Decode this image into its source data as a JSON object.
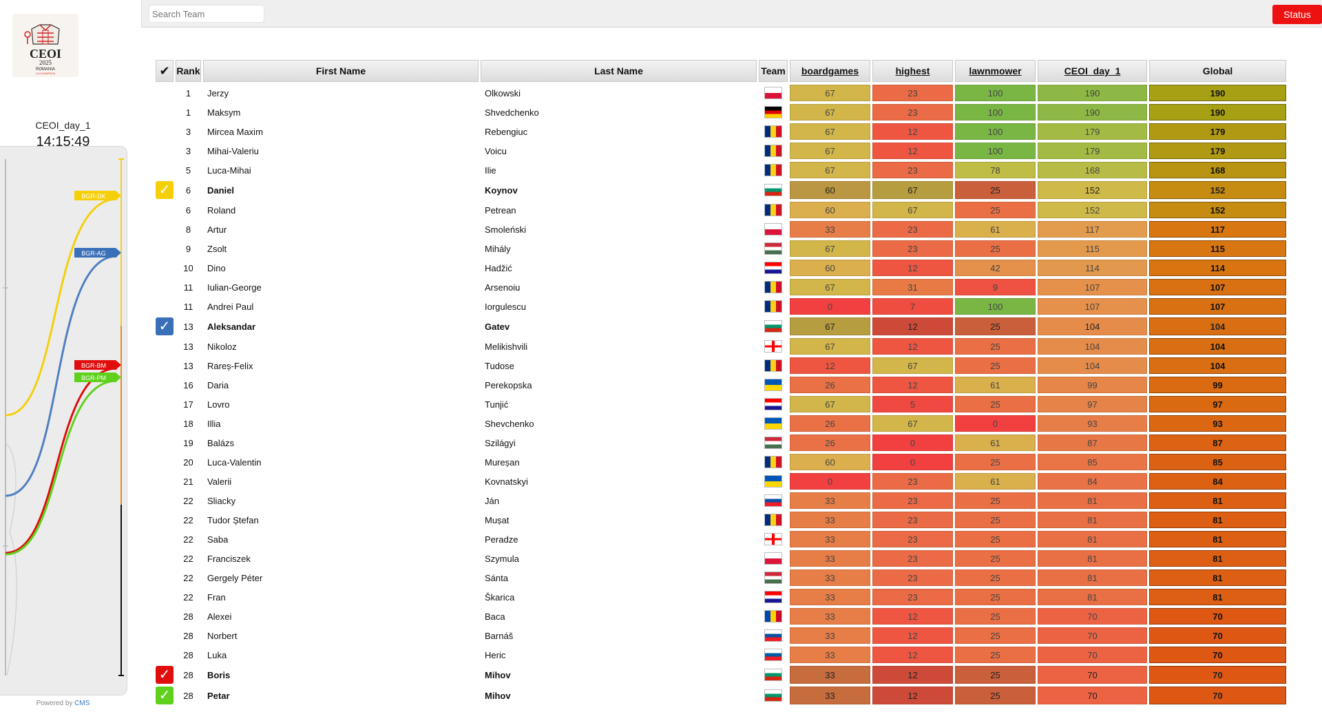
{
  "sidebar": {
    "contest_name": "CEOI_day_1",
    "clock": "14:15:49",
    "powered_by": "Powered by ",
    "cms": "CMS",
    "chart_labels": [
      {
        "name": "BGR-DK",
        "color": "#f5cf0a"
      },
      {
        "name": "BGR-AG",
        "color": "#3a70b8"
      },
      {
        "name": "BGR-BM",
        "color": "#e00d0d"
      },
      {
        "name": "BGR-PM",
        "color": "#5fd11c"
      }
    ]
  },
  "topbar": {
    "search_placeholder": "Search Team",
    "status_label": "Status"
  },
  "table": {
    "headers": {
      "select": "✔",
      "rank": "Rank",
      "first_name": "First Name",
      "last_name": "Last Name",
      "team": "Team",
      "boardgames": "boardgames",
      "highest": "highest",
      "lawnmower": "lawnmower",
      "day": "CEOI_day_1",
      "global": "Global"
    },
    "rows": [
      {
        "rank": "1",
        "first": "Jerzy",
        "last": "Olkowski",
        "flag": "pol",
        "s": [
          67,
          23,
          100
        ],
        "day": 190,
        "global": 190
      },
      {
        "rank": "1",
        "first": "Maksym",
        "last": "Shvedchenko",
        "flag": "deu",
        "s": [
          67,
          23,
          100
        ],
        "day": 190,
        "global": 190
      },
      {
        "rank": "3",
        "first": "Mircea Maxim",
        "last": "Rebengiuc",
        "flag": "rou",
        "s": [
          67,
          12,
          100
        ],
        "day": 179,
        "global": 179
      },
      {
        "rank": "3",
        "first": "Mihai-Valeriu",
        "last": "Voicu",
        "flag": "rou",
        "s": [
          67,
          12,
          100
        ],
        "day": 179,
        "global": 179
      },
      {
        "rank": "5",
        "first": "Luca-Mihai",
        "last": "Ilie",
        "flag": "rou",
        "s": [
          67,
          23,
          78
        ],
        "day": 168,
        "global": 168
      },
      {
        "rank": "6",
        "first": "Daniel",
        "last": "Koynov",
        "flag": "bgr",
        "s": [
          60,
          67,
          25
        ],
        "day": 152,
        "global": 152,
        "selected": "#f5cf0a"
      },
      {
        "rank": "6",
        "first": "Roland",
        "last": "Petrean",
        "flag": "rou",
        "s": [
          60,
          67,
          25
        ],
        "day": 152,
        "global": 152
      },
      {
        "rank": "8",
        "first": "Artur",
        "last": "Smoleński",
        "flag": "pol",
        "s": [
          33,
          23,
          61
        ],
        "day": 117,
        "global": 117
      },
      {
        "rank": "9",
        "first": "Zsolt",
        "last": "Mihály",
        "flag": "hun",
        "s": [
          67,
          23,
          25
        ],
        "day": 115,
        "global": 115
      },
      {
        "rank": "10",
        "first": "Dino",
        "last": "Hadžić",
        "flag": "hrv",
        "s": [
          60,
          12,
          42
        ],
        "day": 114,
        "global": 114
      },
      {
        "rank": "11",
        "first": "Iulian-George",
        "last": "Arsenoiu",
        "flag": "rou",
        "s": [
          67,
          31,
          9
        ],
        "day": 107,
        "global": 107
      },
      {
        "rank": "11",
        "first": "Andrei Paul",
        "last": "Iorgulescu",
        "flag": "rou",
        "s": [
          0,
          7,
          100
        ],
        "day": 107,
        "global": 107
      },
      {
        "rank": "13",
        "first": "Aleksandar",
        "last": "Gatev",
        "flag": "bgr",
        "s": [
          67,
          12,
          25
        ],
        "day": 104,
        "global": 104,
        "selected": "#3a70b8"
      },
      {
        "rank": "13",
        "first": "Nikoloz",
        "last": "Melikishvili",
        "flag": "geo",
        "s": [
          67,
          12,
          25
        ],
        "day": 104,
        "global": 104
      },
      {
        "rank": "13",
        "first": "Rareș-Felix",
        "last": "Tudose",
        "flag": "rou",
        "s": [
          12,
          67,
          25
        ],
        "day": 104,
        "global": 104
      },
      {
        "rank": "16",
        "first": "Daria",
        "last": "Perekopska",
        "flag": "ukr",
        "s": [
          26,
          12,
          61
        ],
        "day": 99,
        "global": 99
      },
      {
        "rank": "17",
        "first": "Lovro",
        "last": "Tunjić",
        "flag": "hrv",
        "s": [
          67,
          5,
          25
        ],
        "day": 97,
        "global": 97
      },
      {
        "rank": "18",
        "first": "Illia",
        "last": "Shevchenko",
        "flag": "ukr",
        "s": [
          26,
          67,
          0
        ],
        "day": 93,
        "global": 93
      },
      {
        "rank": "19",
        "first": "Balázs",
        "last": "Szilágyi",
        "flag": "hun",
        "s": [
          26,
          0,
          61
        ],
        "day": 87,
        "global": 87
      },
      {
        "rank": "20",
        "first": "Luca-Valentin",
        "last": "Mureșan",
        "flag": "rou",
        "s": [
          60,
          0,
          25
        ],
        "day": 85,
        "global": 85
      },
      {
        "rank": "21",
        "first": "Valerii",
        "last": "Kovnatskyi",
        "flag": "ukr",
        "s": [
          0,
          23,
          61
        ],
        "day": 84,
        "global": 84
      },
      {
        "rank": "22",
        "first": "Sliacky",
        "last": "Ján",
        "flag": "svk",
        "s": [
          33,
          23,
          25
        ],
        "day": 81,
        "global": 81
      },
      {
        "rank": "22",
        "first": "Tudor Ștefan",
        "last": "Mușat",
        "flag": "rou",
        "s": [
          33,
          23,
          25
        ],
        "day": 81,
        "global": 81
      },
      {
        "rank": "22",
        "first": "Saba",
        "last": "Peradze",
        "flag": "geo",
        "s": [
          33,
          23,
          25
        ],
        "day": 81,
        "global": 81
      },
      {
        "rank": "22",
        "first": "Franciszek",
        "last": "Szymula",
        "flag": "pol",
        "s": [
          33,
          23,
          25
        ],
        "day": 81,
        "global": 81
      },
      {
        "rank": "22",
        "first": "Gergely Péter",
        "last": "Sánta",
        "flag": "hun",
        "s": [
          33,
          23,
          25
        ],
        "day": 81,
        "global": 81
      },
      {
        "rank": "22",
        "first": "Fran",
        "last": "Škarica",
        "flag": "hrv",
        "s": [
          33,
          23,
          25
        ],
        "day": 81,
        "global": 81
      },
      {
        "rank": "28",
        "first": "Alexei",
        "last": "Baca",
        "flag": "mda",
        "s": [
          33,
          12,
          25
        ],
        "day": 70,
        "global": 70
      },
      {
        "rank": "28",
        "first": "Norbert",
        "last": "Barnáš",
        "flag": "svk",
        "s": [
          33,
          12,
          25
        ],
        "day": 70,
        "global": 70
      },
      {
        "rank": "28",
        "first": "Luka",
        "last": "Heric",
        "flag": "svn",
        "s": [
          33,
          12,
          25
        ],
        "day": 70,
        "global": 70
      },
      {
        "rank": "28",
        "first": "Boris",
        "last": "Mihov",
        "flag": "bgr",
        "s": [
          33,
          12,
          25
        ],
        "day": 70,
        "global": 70,
        "selected": "#e00d0d"
      },
      {
        "rank": "28",
        "first": "Petar",
        "last": "Mihov",
        "flag": "bgr",
        "s": [
          33,
          12,
          25
        ],
        "day": 70,
        "global": 70,
        "selected": "#5fd11c"
      }
    ]
  }
}
